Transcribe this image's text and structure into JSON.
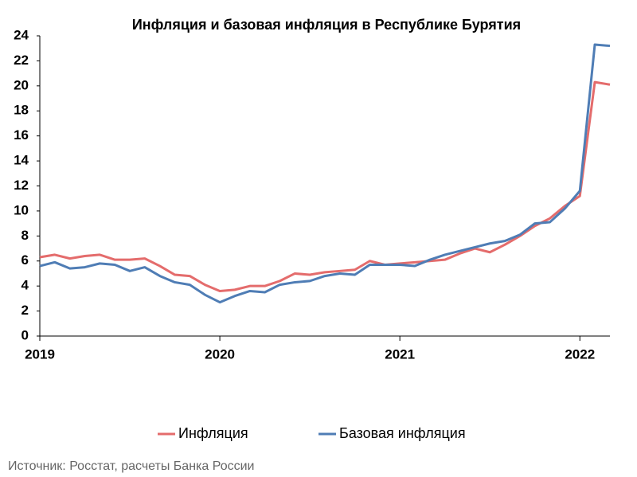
{
  "chart_data": {
    "type": "line",
    "title": "Инфляция и базовая инфляция в Республике Бурятия",
    "source": "Источник: Росстат, расчеты Банка России",
    "x": [
      2019,
      2019.083,
      2019.167,
      2019.25,
      2019.333,
      2019.417,
      2019.5,
      2019.583,
      2019.667,
      2019.75,
      2019.833,
      2019.917,
      2020,
      2020.083,
      2020.167,
      2020.25,
      2020.333,
      2020.417,
      2020.5,
      2020.583,
      2020.667,
      2020.75,
      2020.833,
      2020.917,
      2021,
      2021.083,
      2021.167,
      2021.25,
      2021.333,
      2021.417,
      2021.5,
      2021.583,
      2021.667,
      2021.75,
      2021.833,
      2021.917,
      2022,
      2022.083,
      2022.167
    ],
    "series": [
      {
        "name": "Инфляция",
        "color": "#e46c6c",
        "values": [
          6.3,
          6.5,
          6.2,
          6.4,
          6.5,
          6.1,
          6.1,
          6.2,
          5.6,
          4.9,
          4.8,
          4.1,
          3.6,
          3.7,
          4.0,
          4.0,
          4.4,
          5.0,
          4.9,
          5.1,
          5.2,
          5.3,
          6.0,
          5.7,
          5.8,
          5.9,
          6.0,
          6.1,
          6.6,
          7.0,
          6.7,
          7.3,
          8.0,
          8.8,
          9.4,
          10.4,
          11.2,
          20.3,
          20.1
        ]
      },
      {
        "name": "Базовая инфляция",
        "color": "#4f7db5",
        "values": [
          5.6,
          5.9,
          5.4,
          5.5,
          5.8,
          5.7,
          5.2,
          5.5,
          4.8,
          4.3,
          4.1,
          3.3,
          2.7,
          3.2,
          3.6,
          3.5,
          4.1,
          4.3,
          4.4,
          4.8,
          5.0,
          4.9,
          5.7,
          5.7,
          5.7,
          5.6,
          6.1,
          6.5,
          6.8,
          7.1,
          7.4,
          7.6,
          8.1,
          9.0,
          9.1,
          10.2,
          11.6,
          23.3,
          23.2
        ]
      }
    ],
    "xlim": [
      2019,
      2022.167
    ],
    "xticks": [
      2019,
      2020,
      2021,
      2022
    ],
    "ylim": [
      0,
      24
    ],
    "yticks": [
      0,
      2,
      4,
      6,
      8,
      10,
      12,
      14,
      16,
      18,
      20,
      22,
      24
    ],
    "legend": "bottom"
  }
}
